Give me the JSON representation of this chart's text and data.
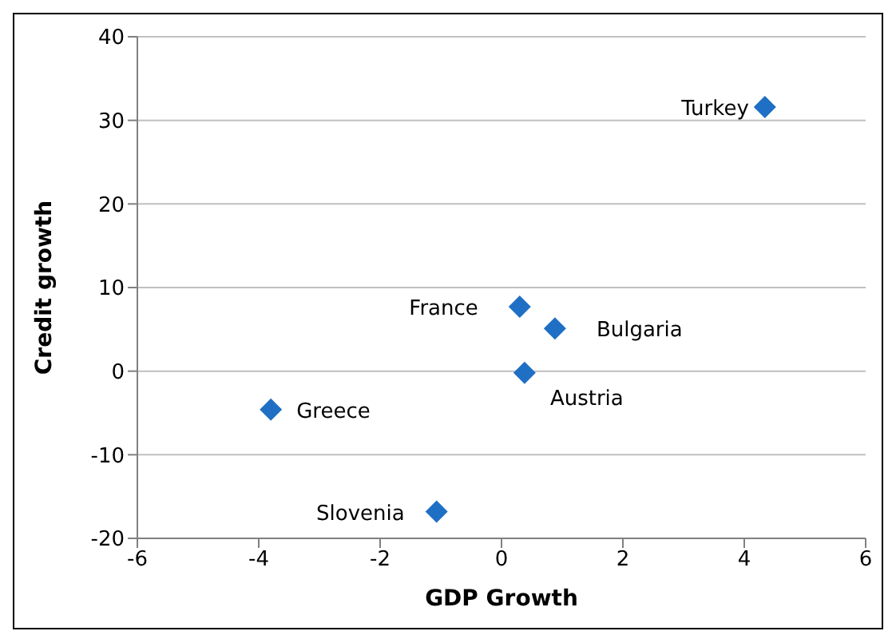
{
  "chart_data": {
    "type": "scatter",
    "xlabel": "GDP Growth",
    "ylabel": "Credit growth",
    "x": [
      4.34,
      0.3,
      0.88,
      0.38,
      -3.8,
      -1.07
    ],
    "values": [
      31.6,
      7.7,
      5.1,
      -0.2,
      -4.6,
      -16.8
    ],
    "color": "#1f6fc5",
    "marker": "diamond",
    "xlim": [
      -6,
      6
    ],
    "xticks": [
      -6,
      -4,
      -2,
      0,
      2,
      4,
      6
    ],
    "ylim": [
      -20,
      40
    ],
    "yticks": [
      -20,
      -10,
      0,
      10,
      20,
      30,
      40
    ],
    "grid": "y",
    "annotations": [
      {
        "text": "Turkey",
        "x": 4.34,
        "y": 31.6
      },
      {
        "text": "France",
        "x": 0.3,
        "y": 7.7
      },
      {
        "text": "Bulgaria",
        "x": 0.88,
        "y": 5.1
      },
      {
        "text": "Austria",
        "x": 0.38,
        "y": -0.2
      },
      {
        "text": "Greece",
        "x": -3.8,
        "y": -4.6
      },
      {
        "text": "Slovenia",
        "x": -1.07,
        "y": -16.8
      }
    ]
  }
}
